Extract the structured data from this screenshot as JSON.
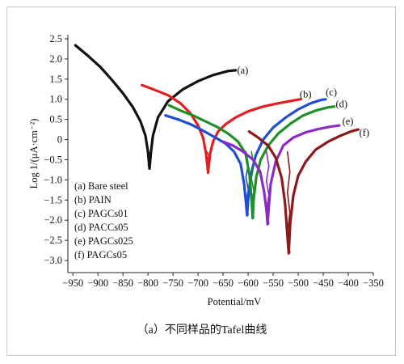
{
  "chart_data": {
    "type": "line",
    "xlabel": "Potential/mV",
    "ylabel": "Log 1/(μA·cm⁻²)",
    "caption_prefix": "（a）",
    "caption_cn": "不同样品的",
    "caption_tafel": "Tafel",
    "caption_cn2": "曲线",
    "xlim": [
      -960,
      -350
    ],
    "ylim": [
      -3.3,
      2.6
    ],
    "x_ticks": [
      "−950",
      "−900",
      "−850",
      "−800",
      "−750",
      "−700",
      "−650",
      "−600",
      "−550",
      "−500",
      "−450",
      "−400",
      "−350"
    ],
    "y_ticks": [
      "2.5",
      "2.0",
      "1.5",
      "1.0",
      "0.5",
      "0",
      "−0.5",
      "−1.0",
      "−1.5",
      "−2.0",
      "−2.5",
      "−3.0"
    ],
    "legend": [
      "(a) Bare steel",
      "(b) PAIN",
      "(c) PAGCs01",
      "(d) PACCs05",
      "(e) PAGCs025",
      "(f) PAGCs05"
    ],
    "series": [
      {
        "tag": "(a)",
        "color": "#111111",
        "ecorr": -797,
        "min": -0.72,
        "x": [
          -945,
          -920,
          -895,
          -870,
          -850,
          -830,
          -815,
          -805,
          -800,
          -797,
          -794,
          -790,
          -780,
          -760,
          -730,
          -700,
          -670,
          -640,
          -625
        ],
        "y": [
          2.34,
          2.08,
          1.8,
          1.45,
          1.15,
          0.8,
          0.45,
          0.1,
          -0.3,
          -0.72,
          -0.3,
          0.1,
          0.55,
          0.95,
          1.25,
          1.45,
          1.6,
          1.7,
          1.72
        ]
      },
      {
        "tag": "(b)",
        "color": "#e02020",
        "ecorr": -680,
        "min": -0.82,
        "x": [
          -812,
          -790,
          -760,
          -735,
          -715,
          -700,
          -690,
          -684,
          -680,
          -676,
          -670,
          -660,
          -645,
          -625,
          -600,
          -570,
          -540,
          -505,
          -495
        ],
        "y": [
          1.35,
          1.25,
          1.1,
          0.9,
          0.65,
          0.35,
          0.05,
          -0.35,
          -0.82,
          -0.35,
          -0.05,
          0.2,
          0.38,
          0.55,
          0.7,
          0.82,
          0.9,
          0.98,
          1.0
        ]
      },
      {
        "tag": "(c)",
        "color": "#1f4fd0",
        "ecorr": -602,
        "min": -1.88,
        "x": [
          -765,
          -740,
          -715,
          -690,
          -665,
          -645,
          -628,
          -615,
          -608,
          -604,
          -602,
          -600,
          -595,
          -585,
          -570,
          -550,
          -525,
          -500,
          -475,
          -455,
          -445
        ],
        "y": [
          0.6,
          0.5,
          0.38,
          0.22,
          0.05,
          -0.1,
          -0.3,
          -0.6,
          -1.1,
          -1.6,
          -1.88,
          -1.5,
          -0.9,
          -0.4,
          0.0,
          0.3,
          0.55,
          0.75,
          0.9,
          0.98,
          1.0
        ]
      },
      {
        "tag": "(d)",
        "color": "#1f8f2a",
        "ecorr": -591,
        "min": -1.95,
        "x": [
          -758,
          -735,
          -710,
          -685,
          -660,
          -640,
          -620,
          -605,
          -597,
          -593,
          -591,
          -589,
          -584,
          -575,
          -560,
          -540,
          -515,
          -490,
          -465,
          -440,
          -428
        ],
        "y": [
          0.85,
          0.72,
          0.6,
          0.45,
          0.3,
          0.15,
          -0.05,
          -0.35,
          -0.9,
          -1.5,
          -1.95,
          -1.5,
          -0.95,
          -0.5,
          -0.15,
          0.15,
          0.4,
          0.6,
          0.72,
          0.8,
          0.82
        ]
      },
      {
        "tag": "(e)",
        "color": "#8a2bc8",
        "ecorr": -561,
        "min": -2.1,
        "x": [
          -650,
          -630,
          -610,
          -590,
          -576,
          -568,
          -563,
          -561,
          -559,
          -555,
          -545,
          -530,
          -510,
          -485,
          -460,
          -435,
          -418
        ],
        "y": [
          -0.05,
          -0.15,
          -0.3,
          -0.5,
          -0.8,
          -1.3,
          -1.8,
          -2.1,
          -1.7,
          -1.1,
          -0.55,
          -0.15,
          0.05,
          0.18,
          0.26,
          0.32,
          0.35
        ]
      },
      {
        "tag": "(f)",
        "color": "#8b1a1a",
        "ecorr": -519,
        "min": -2.82,
        "x": [
          -598,
          -580,
          -560,
          -545,
          -533,
          -526,
          -522,
          -519,
          -516,
          -510,
          -500,
          -485,
          -465,
          -440,
          -415,
          -395,
          -380
        ],
        "y": [
          0.2,
          0.05,
          -0.15,
          -0.45,
          -0.95,
          -1.6,
          -2.3,
          -2.82,
          -2.1,
          -1.4,
          -0.9,
          -0.55,
          -0.25,
          -0.05,
          0.1,
          0.2,
          0.25
        ]
      }
    ],
    "series_labels": [
      {
        "text": "(a)",
        "x": -622,
        "y": 1.72
      },
      {
        "text": "(b)",
        "x": -497,
        "y": 1.12
      },
      {
        "text": "(c)",
        "x": -445,
        "y": 1.18
      },
      {
        "text": "(d)",
        "x": -425,
        "y": 0.88
      },
      {
        "text": "(e)",
        "x": -412,
        "y": 0.45
      },
      {
        "text": "(f)",
        "x": -378,
        "y": 0.17
      }
    ]
  }
}
